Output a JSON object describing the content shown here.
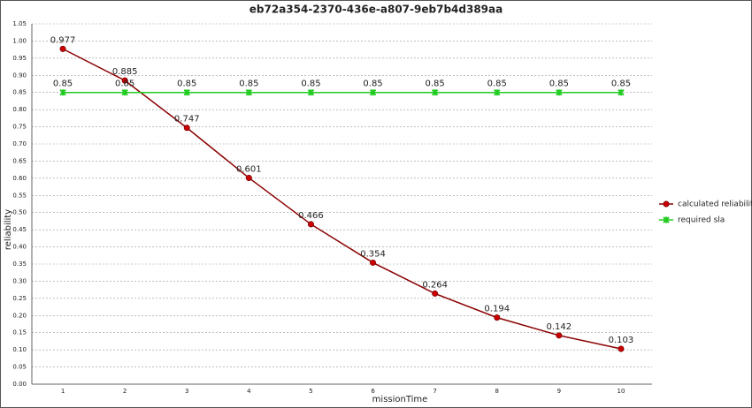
{
  "chart_data": {
    "type": "line",
    "title": "eb72a354-2370-436e-a807-9eb7b4d389aa",
    "x_label": "missionTime",
    "y_label": "reliability",
    "categories": [
      "1",
      "2",
      "3",
      "4",
      "5",
      "6",
      "7",
      "8",
      "9",
      "10"
    ],
    "series": [
      {
        "name": "calculated reliability",
        "color": "#8b0000",
        "marker_color": "#cc0000",
        "marker": "circle",
        "values": [
          0.977,
          0.885,
          0.747,
          0.601,
          0.466,
          0.354,
          0.264,
          0.194,
          0.142,
          0.103
        ]
      },
      {
        "name": "required sla",
        "color": "#22cc22",
        "marker_color": "#22cc22",
        "marker": "x",
        "values": [
          0.85,
          0.85,
          0.85,
          0.85,
          0.85,
          0.85,
          0.85,
          0.85,
          0.85,
          0.85
        ]
      }
    ],
    "ylim": [
      0,
      1.05
    ],
    "yticks": [
      {
        "value": 0,
        "label": "0.00"
      },
      0.05,
      {
        "value": 0.1,
        "label": "0.10"
      },
      0.15,
      {
        "value": 0.2,
        "label": "0.20"
      },
      0.25,
      {
        "value": 0.3,
        "label": "0.30"
      },
      0.35,
      {
        "value": 0.4,
        "label": "0.40"
      },
      0.45,
      {
        "value": 0.5,
        "label": "0.50"
      },
      0.55,
      {
        "value": 0.6,
        "label": "0.60"
      },
      0.65,
      {
        "value": 0.7,
        "label": "0.70"
      },
      0.75,
      {
        "value": 0.8,
        "label": "0.80"
      },
      0.85,
      {
        "value": 0.9,
        "label": "0.90"
      },
      0.95,
      {
        "value": 1,
        "label": "1.00"
      },
      1.05
    ],
    "grid": true,
    "legend": "right"
  }
}
